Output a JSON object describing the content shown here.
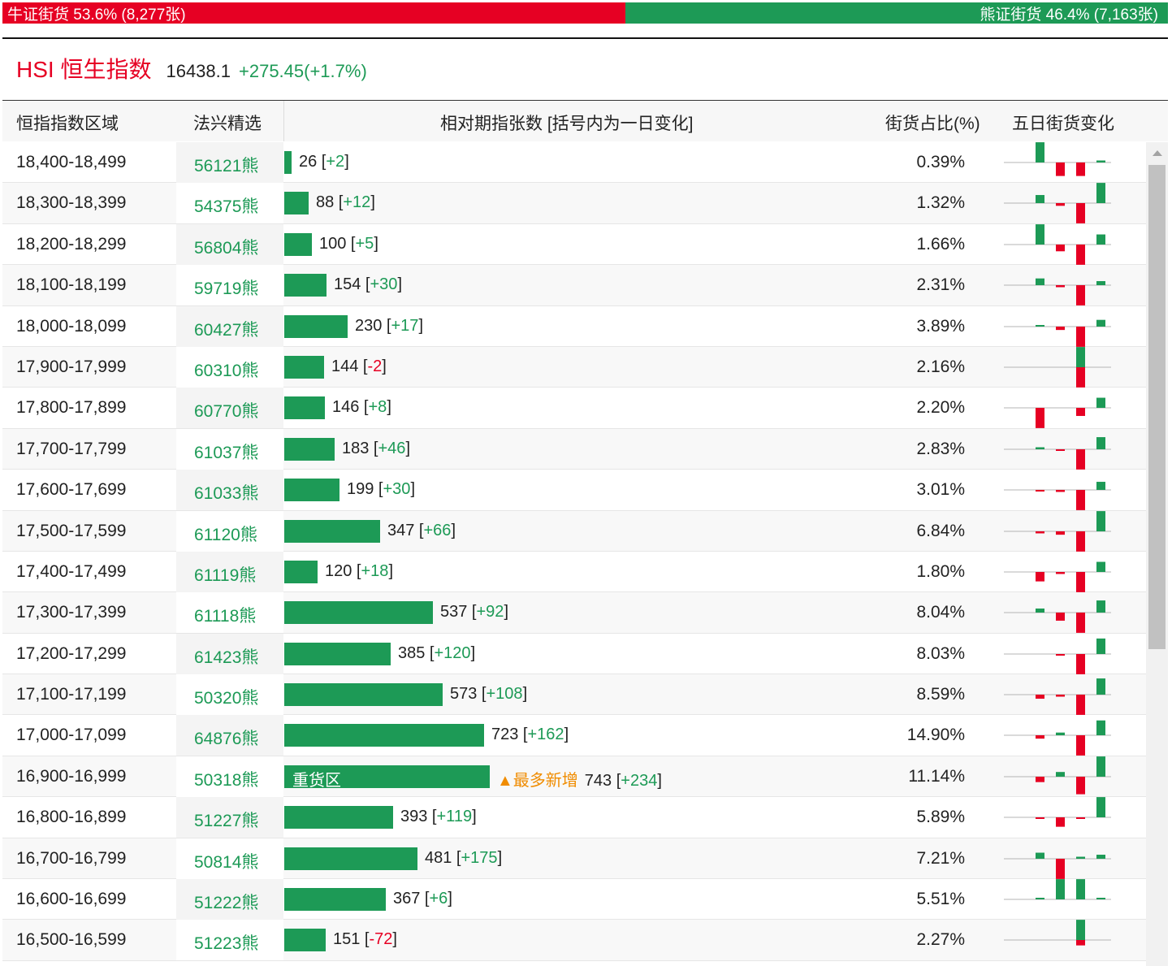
{
  "ratio": {
    "bull_label": "牛证街货 53.6% (8,277张)",
    "bear_label": "熊证街货 46.4% (7,163张)",
    "bull_pct": 53.6,
    "bull_color": "#e60023",
    "bear_color": "#1d9a56"
  },
  "index": {
    "code": "HSI 恒生指数",
    "price": "16438.1",
    "change": "+275.45(+1.7%)"
  },
  "table": {
    "headers": {
      "range": "恒指指数区域",
      "pick": "法兴精选",
      "count": "相对期指张数 [括号内为一日变化]",
      "pct": "街货占比(%)",
      "five_day": "五日街货变化"
    },
    "rows": [
      {
        "range": "18,400-18,499",
        "code": "56121熊",
        "count": 26,
        "count_text": "26",
        "delta": "+2",
        "pct": "0.39%",
        "spark": [
          3,
          -2,
          -2,
          0,
          0.3
        ]
      },
      {
        "range": "18,300-18,399",
        "code": "54375熊",
        "count": 88,
        "count_text": "88",
        "delta": "+12",
        "pct": "1.32%",
        "spark": [
          1.2,
          -0.4,
          -3,
          0,
          3
        ]
      },
      {
        "range": "18,200-18,299",
        "code": "56804熊",
        "count": 100,
        "count_text": "100",
        "delta": "+5",
        "pct": "1.66%",
        "spark": [
          3,
          -1,
          -3,
          0,
          1.5
        ]
      },
      {
        "range": "18,100-18,199",
        "code": "59719熊",
        "count": 154,
        "count_text": "154",
        "delta": "+30",
        "pct": "2.31%",
        "spark": [
          1,
          -0.3,
          -3,
          0,
          0.6
        ]
      },
      {
        "range": "18,000-18,099",
        "code": "60427熊",
        "count": 230,
        "count_text": "230",
        "delta": "+17",
        "pct": "3.89%",
        "spark": [
          0.2,
          -0.5,
          -3,
          0,
          1
        ]
      },
      {
        "range": "17,900-17,999",
        "code": "60310熊",
        "count": 144,
        "count_text": "144",
        "delta": "-2",
        "pct": "2.16%",
        "spark": [
          0,
          0,
          3,
          -3,
          0
        ]
      },
      {
        "range": "17,800-17,899",
        "code": "60770熊",
        "count": 146,
        "count_text": "146",
        "delta": "+8",
        "pct": "2.20%",
        "spark": [
          -3,
          0,
          -1.2,
          0,
          1.5
        ]
      },
      {
        "range": "17,700-17,799",
        "code": "61037熊",
        "count": 183,
        "count_text": "183",
        "delta": "+46",
        "pct": "2.83%",
        "spark": [
          0.3,
          -0.2,
          -3,
          0,
          1.8
        ]
      },
      {
        "range": "17,600-17,699",
        "code": "61033熊",
        "count": 199,
        "count_text": "199",
        "delta": "+30",
        "pct": "3.01%",
        "spark": [
          -0.2,
          -0.3,
          -3,
          0,
          1.2
        ]
      },
      {
        "range": "17,500-17,599",
        "code": "61120熊",
        "count": 347,
        "count_text": "347",
        "delta": "+66",
        "pct": "6.84%",
        "spark": [
          -0.3,
          -0.5,
          -3,
          0,
          3
        ]
      },
      {
        "range": "17,400-17,499",
        "code": "61119熊",
        "count": 120,
        "count_text": "120",
        "delta": "+18",
        "pct": "1.80%",
        "spark": [
          -1.4,
          -0.3,
          -3,
          0,
          1.5
        ]
      },
      {
        "range": "17,300-17,399",
        "code": "61118熊",
        "count": 537,
        "count_text": "537",
        "delta": "+92",
        "pct": "8.04%",
        "spark": [
          0.6,
          -1.2,
          -3,
          0,
          1.8
        ]
      },
      {
        "range": "17,200-17,299",
        "code": "61423熊",
        "count": 385,
        "count_text": "385",
        "delta": "+120",
        "pct": "8.03%",
        "spark": [
          0,
          -0.1,
          -3,
          0,
          2.3
        ]
      },
      {
        "range": "17,100-17,199",
        "code": "50320熊",
        "count": 573,
        "count_text": "573",
        "delta": "+108",
        "pct": "8.59%",
        "spark": [
          -0.6,
          -0.3,
          -3,
          0,
          2.4
        ]
      },
      {
        "range": "17,000-17,099",
        "code": "64876熊",
        "count": 723,
        "count_text": "723",
        "delta": "+162",
        "pct": "14.90%",
        "spark": [
          -0.5,
          0.4,
          -3,
          0,
          2.2
        ]
      },
      {
        "range": "16,900-16,999",
        "code": "50318熊",
        "count": 743,
        "count_text": "743",
        "delta": "+234",
        "pct": "11.14%",
        "spark": [
          -0.8,
          0.7,
          -2.6,
          0,
          3
        ],
        "bar_label": "重货区",
        "tag": "▲最多新增"
      },
      {
        "range": "16,800-16,899",
        "code": "51227熊",
        "count": 393,
        "count_text": "393",
        "delta": "+119",
        "pct": "5.89%",
        "spark": [
          -0.1,
          -1.4,
          -0.2,
          0,
          3
        ]
      },
      {
        "range": "16,700-16,799",
        "code": "50814熊",
        "count": 481,
        "count_text": "481",
        "delta": "+175",
        "pct": "7.21%",
        "spark": [
          0.9,
          -3,
          0.3,
          0,
          0.6
        ]
      },
      {
        "range": "16,600-16,699",
        "code": "51222熊",
        "count": 367,
        "count_text": "367",
        "delta": "+6",
        "pct": "5.51%",
        "spark": [
          0.2,
          3,
          3,
          0,
          0.2
        ]
      },
      {
        "range": "16,500-16,599",
        "code": "51223熊",
        "count": 151,
        "count_text": "151",
        "delta": "-72",
        "pct": "2.27%",
        "spark": [
          0,
          0,
          3,
          -0.8,
          0
        ]
      }
    ]
  },
  "colors": {
    "up": "#1d9a56",
    "down": "#e60023",
    "accent": "#f08c00"
  }
}
